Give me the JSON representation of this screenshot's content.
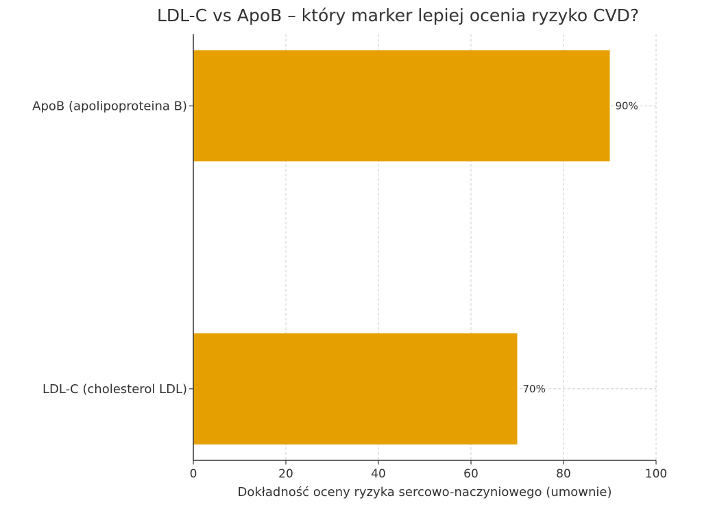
{
  "chart_data": {
    "type": "bar",
    "orientation": "horizontal",
    "title": "LDL-C vs ApoB – który marker lepiej ocenia ryzyko CVD?",
    "xlabel": "Dokładność oceny ryzyka sercowo-naczyniowego (umownie)",
    "ylabel": "",
    "categories": [
      "ApoB (apolipoproteina B)",
      "LDL-C (cholesterol LDL)"
    ],
    "values": [
      90,
      70
    ],
    "value_labels": [
      "90%",
      "70%"
    ],
    "xlim": [
      0,
      100
    ],
    "xticks": [
      0,
      20,
      40,
      60,
      80,
      100
    ],
    "grid": true,
    "bar_color": "#E5A000",
    "grid_color": "#cccccc"
  }
}
